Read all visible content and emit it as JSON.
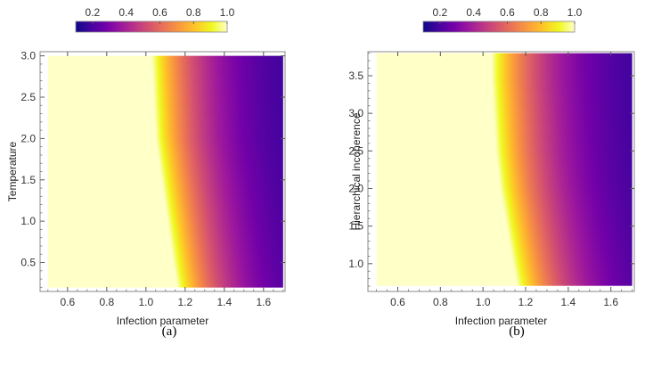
{
  "colorbar": {
    "ticks": [
      "0.2",
      "0.4",
      "0.6",
      "0.8",
      "1.0"
    ],
    "tick_values": [
      0.2,
      0.4,
      0.6,
      0.8,
      1.0
    ],
    "range": [
      0.1,
      1.0
    ],
    "colors": [
      "#0d0887",
      "#46039f",
      "#7201a8",
      "#9c179e",
      "#bd3786",
      "#d8576b",
      "#ed7953",
      "#fb9f3a",
      "#fdca26",
      "#f0f921",
      "#ffffc8"
    ]
  },
  "chart_data": [
    {
      "type": "heatmap",
      "caption": "(a)",
      "xlabel": "Infection parameter",
      "ylabel": "Temperature",
      "xlim": [
        0.46,
        1.71
      ],
      "ylim": [
        0.15,
        3.05
      ],
      "x_ticks": [
        "0.6",
        "0.8",
        "1.0",
        "1.2",
        "1.4",
        "1.6"
      ],
      "x_tick_values": [
        0.6,
        0.8,
        1.0,
        1.2,
        1.4,
        1.6
      ],
      "y_ticks": [
        "0.5",
        "1.0",
        "1.5",
        "2.0",
        "2.5",
        "3.0"
      ],
      "y_tick_values": [
        0.5,
        1.0,
        1.5,
        2.0,
        2.5,
        3.0
      ],
      "data_x_range": [
        0.5,
        1.7
      ],
      "data_y_range": [
        0.2,
        3.0
      ],
      "transition_boundary": {
        "y": [
          0.2,
          0.5,
          1.0,
          1.5,
          2.0,
          2.5,
          3.0
        ],
        "x": [
          1.16,
          1.14,
          1.11,
          1.08,
          1.05,
          1.04,
          1.03
        ]
      }
    },
    {
      "type": "heatmap",
      "caption": "(b)",
      "xlabel": "Infection parameter",
      "ylabel": "Hierarchical incoherence",
      "xlim": [
        0.46,
        1.71
      ],
      "ylim": [
        0.63,
        3.82
      ],
      "x_ticks": [
        "0.6",
        "0.8",
        "1.0",
        "1.2",
        "1.4",
        "1.6"
      ],
      "x_tick_values": [
        0.6,
        0.8,
        1.0,
        1.2,
        1.4,
        1.6
      ],
      "y_ticks": [
        "1.0",
        "1.5",
        "2.0",
        "2.5",
        "3.0",
        "3.5"
      ],
      "y_tick_values": [
        1.0,
        1.5,
        2.0,
        2.5,
        3.0,
        3.5
      ],
      "data_x_range": [
        0.5,
        1.7
      ],
      "data_y_range": [
        0.7,
        3.8
      ],
      "transition_boundary": {
        "y": [
          0.7,
          1.0,
          1.5,
          2.0,
          2.5,
          3.0,
          3.5,
          3.8
        ],
        "x": [
          1.16,
          1.14,
          1.11,
          1.08,
          1.06,
          1.05,
          1.04,
          1.04
        ]
      }
    }
  ]
}
